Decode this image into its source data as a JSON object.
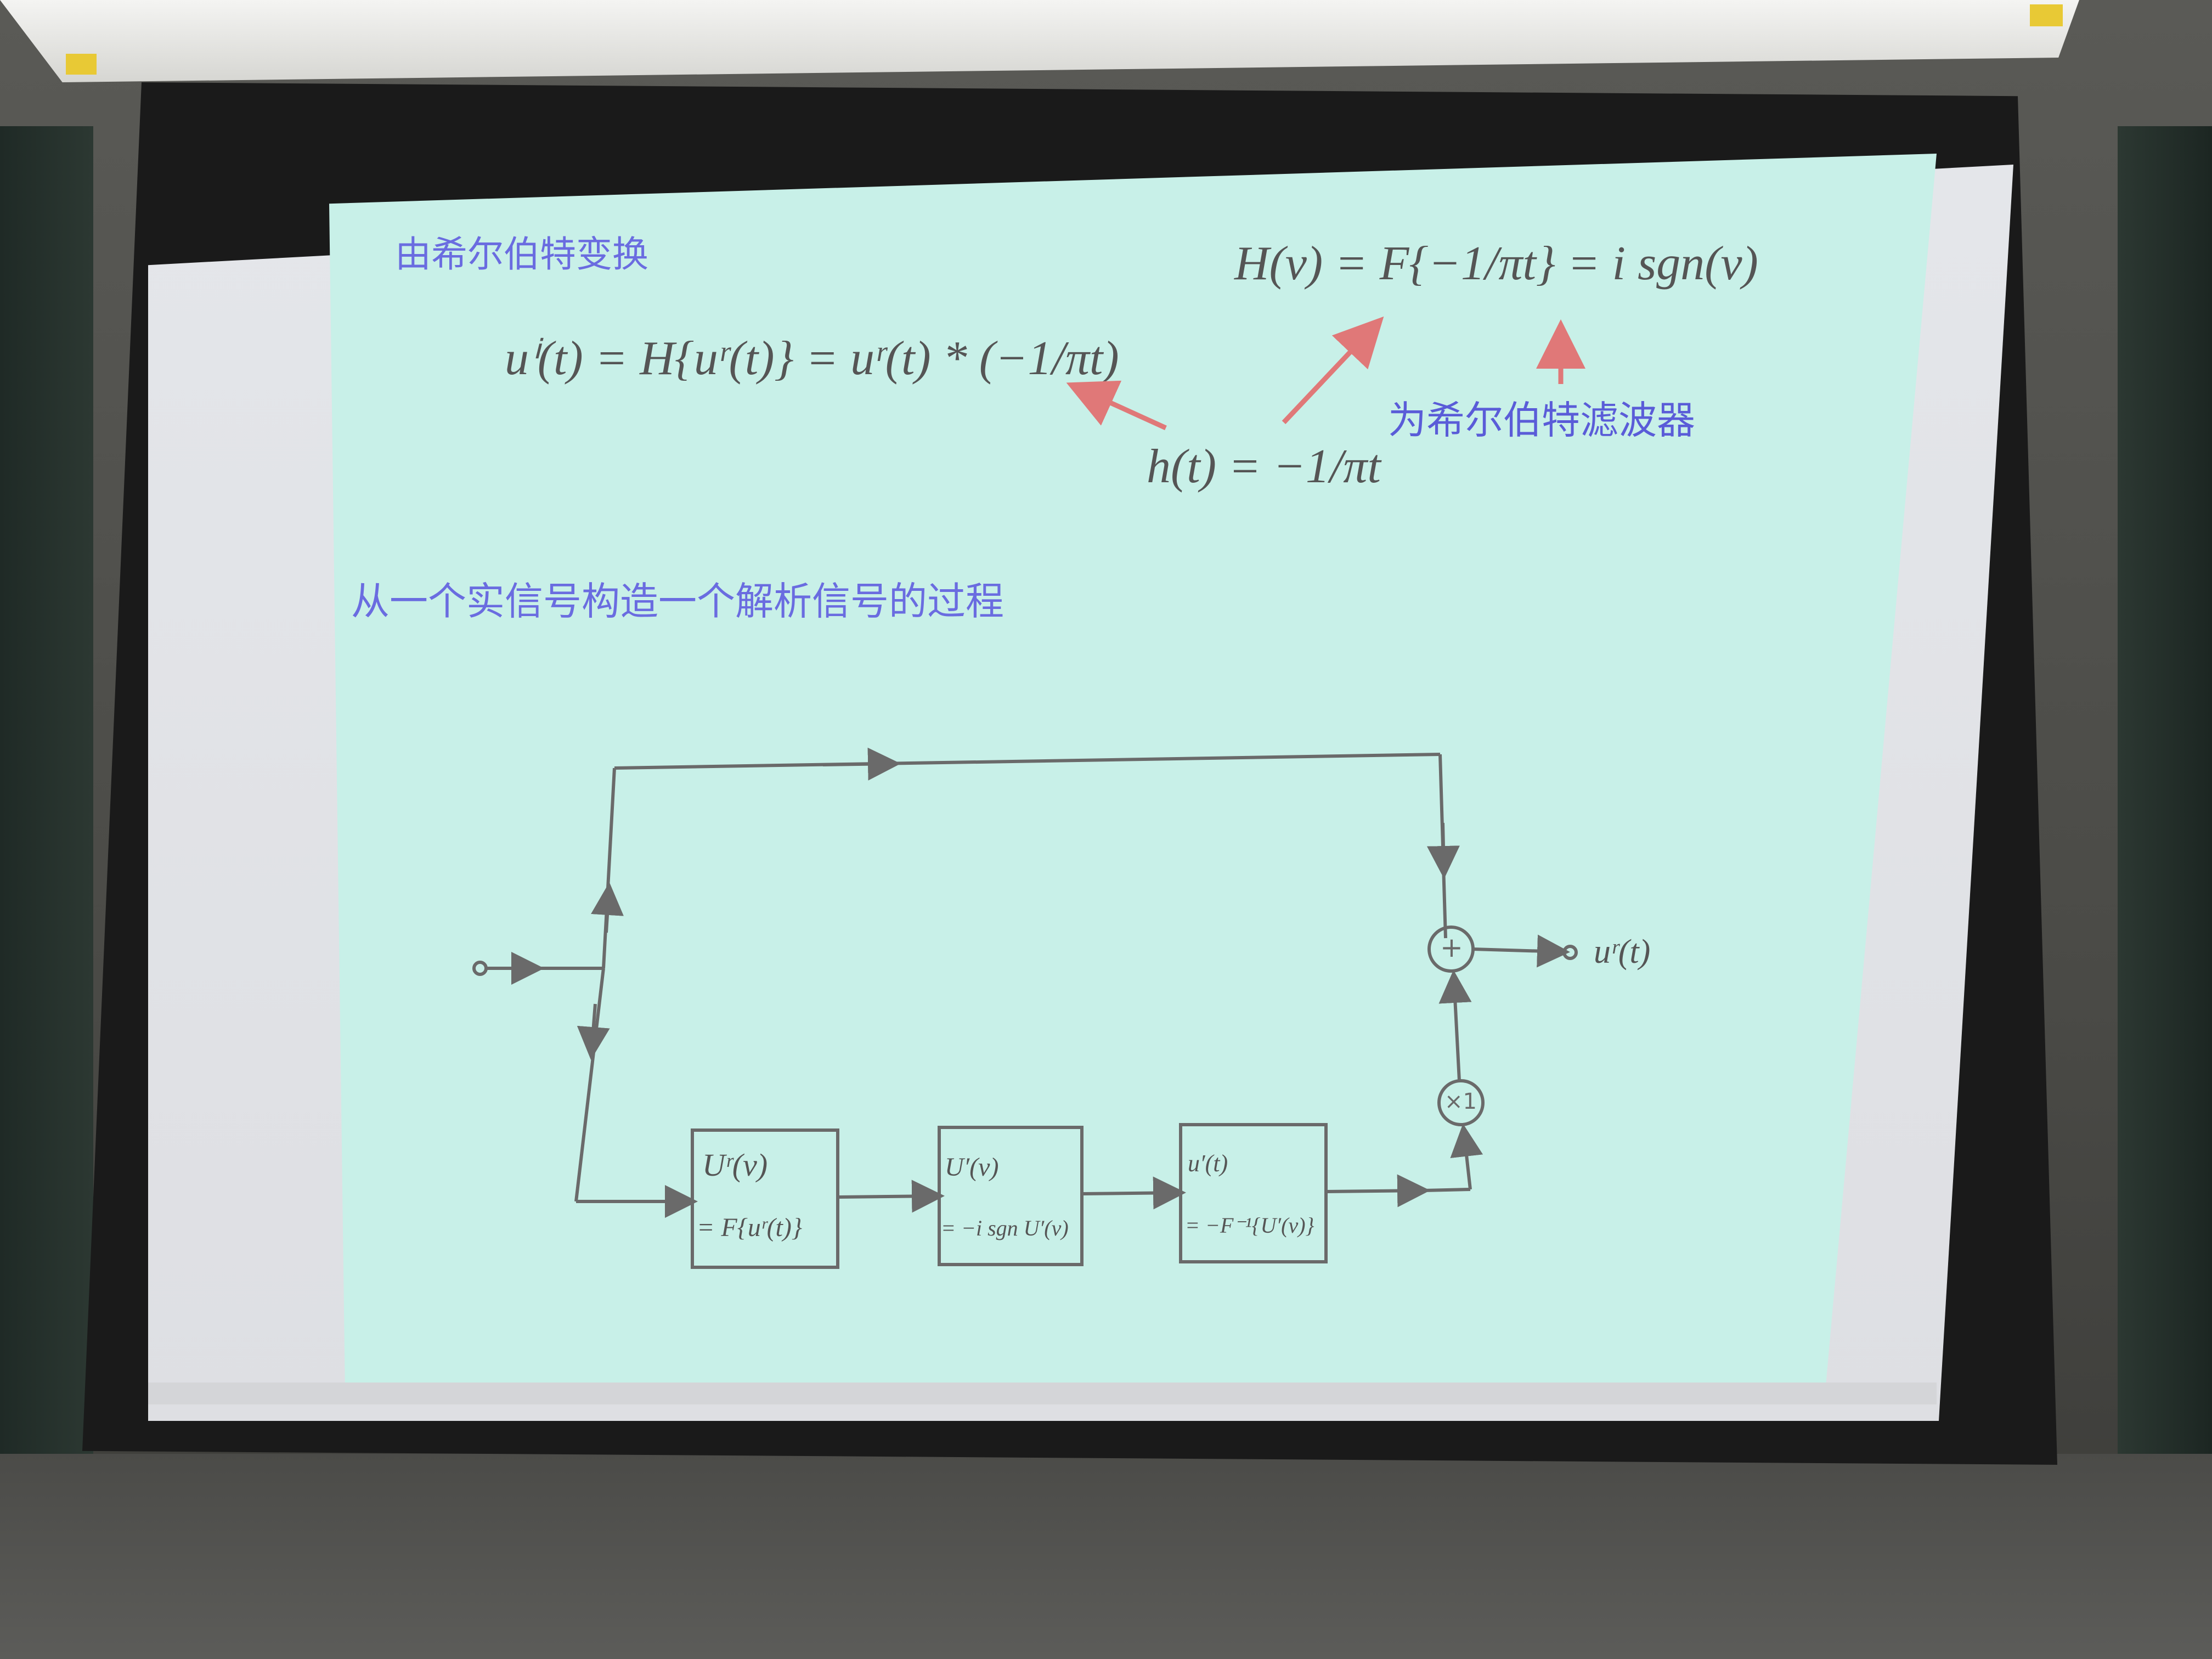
{
  "slide": {
    "heading_1": "由希尔伯特变换",
    "formula_hilbert": "uⁱ(t) = H{uʳ(t)} = uʳ(t) * (−1/πt)",
    "formula_H": "H(ν) = F{−1/πt} = i sgn(ν)",
    "formula_h": "h(t) = −1/πt",
    "label_filter": "为希尔伯特滤波器",
    "heading_2": "从一个实信号构造一个解析信号的过程"
  },
  "diagram": {
    "block1_line1": "Uʳ(ν)",
    "block1_line2": "= F{uʳ(t)}",
    "block2_line1": "U′(ν)",
    "block2_line2": "= −i sgn U′(ν)",
    "block3_line1": "u′(t)",
    "block3_line2": "= −F⁻¹{U′(ν)}",
    "sum_symbol": "+",
    "mult_symbol": "×1",
    "output_label": "uʳ(t)"
  },
  "colors": {
    "slide_bg": "#c8f0e8",
    "text_blue": "#6a6ce0",
    "arrow_red": "#e07878",
    "diagram_line": "#6a6a6a"
  }
}
